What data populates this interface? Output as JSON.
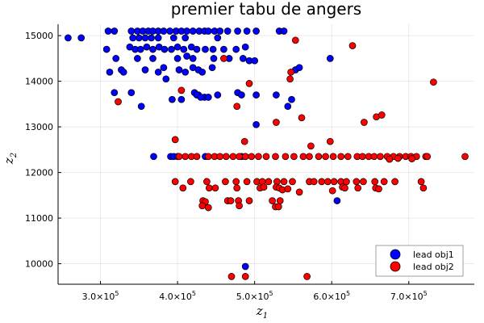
{
  "chart_data": {
    "type": "scatter",
    "title": "premier tabu de angers",
    "xlabel": "z",
    "xlabel_sub": "1",
    "ylabel": "z",
    "ylabel_sub": "2",
    "xlim": [
      245000,
      785000
    ],
    "ylim": [
      9550,
      15250
    ],
    "x_ticks": [
      {
        "value": 300000,
        "mantissa": "3.0×10",
        "exp": "5"
      },
      {
        "value": 400000,
        "mantissa": "4.0×10",
        "exp": "5"
      },
      {
        "value": 500000,
        "mantissa": "5.0×10",
        "exp": "5"
      },
      {
        "value": 600000,
        "mantissa": "6.0×10",
        "exp": "5"
      },
      {
        "value": 700000,
        "mantissa": "7.0×10",
        "exp": "5"
      }
    ],
    "y_ticks": [
      {
        "value": 10000,
        "label": "10000"
      },
      {
        "value": 11000,
        "label": "11000"
      },
      {
        "value": 12000,
        "label": "12000"
      },
      {
        "value": 13000,
        "label": "13000"
      },
      {
        "value": 14000,
        "label": "14000"
      },
      {
        "value": 15000,
        "label": "15000"
      }
    ],
    "grid": true,
    "legend_position": "bottom-right",
    "series": [
      {
        "name": "lead obj1",
        "color": "#0000ff",
        "points": [
          [
            258000,
            14950
          ],
          [
            275000,
            14950
          ],
          [
            310000,
            15100
          ],
          [
            318000,
            15100
          ],
          [
            340000,
            15100
          ],
          [
            348000,
            15100
          ],
          [
            355000,
            15100
          ],
          [
            362000,
            15100
          ],
          [
            368000,
            15100
          ],
          [
            375000,
            15100
          ],
          [
            382000,
            15100
          ],
          [
            390000,
            15100
          ],
          [
            398000,
            15100
          ],
          [
            405000,
            15100
          ],
          [
            412000,
            15100
          ],
          [
            420000,
            15100
          ],
          [
            428000,
            15100
          ],
          [
            435000,
            15100
          ],
          [
            440000,
            15100
          ],
          [
            448000,
            15100
          ],
          [
            455000,
            15100
          ],
          [
            465000,
            15100
          ],
          [
            478000,
            15100
          ],
          [
            490000,
            15100
          ],
          [
            502000,
            15100
          ],
          [
            532000,
            15100
          ],
          [
            538000,
            15100
          ],
          [
            342000,
            14950
          ],
          [
            350000,
            14950
          ],
          [
            358000,
            14950
          ],
          [
            366000,
            14950
          ],
          [
            375000,
            14950
          ],
          [
            395000,
            14950
          ],
          [
            410000,
            14950
          ],
          [
            452000,
            14950
          ],
          [
            308000,
            14700
          ],
          [
            338000,
            14750
          ],
          [
            345000,
            14700
          ],
          [
            352000,
            14700
          ],
          [
            360000,
            14750
          ],
          [
            368000,
            14700
          ],
          [
            376000,
            14750
          ],
          [
            383000,
            14700
          ],
          [
            392000,
            14700
          ],
          [
            400000,
            14750
          ],
          [
            408000,
            14700
          ],
          [
            418000,
            14750
          ],
          [
            425000,
            14700
          ],
          [
            436000,
            14700
          ],
          [
            446000,
            14700
          ],
          [
            460000,
            14700
          ],
          [
            476000,
            14700
          ],
          [
            488000,
            14750
          ],
          [
            320000,
            14500
          ],
          [
            348000,
            14500
          ],
          [
            368000,
            14500
          ],
          [
            400000,
            14500
          ],
          [
            412000,
            14550
          ],
          [
            420000,
            14500
          ],
          [
            447000,
            14500
          ],
          [
            467000,
            14500
          ],
          [
            485000,
            14500
          ],
          [
            493000,
            14450
          ],
          [
            500000,
            14450
          ],
          [
            598000,
            14500
          ],
          [
            312000,
            14200
          ],
          [
            327000,
            14250
          ],
          [
            330000,
            14200
          ],
          [
            358000,
            14250
          ],
          [
            375000,
            14200
          ],
          [
            382000,
            14300
          ],
          [
            402000,
            14250
          ],
          [
            410000,
            14200
          ],
          [
            420000,
            14300
          ],
          [
            427000,
            14250
          ],
          [
            432000,
            14200
          ],
          [
            445000,
            14300
          ],
          [
            553000,
            14250
          ],
          [
            558000,
            14300
          ],
          [
            318000,
            13750
          ],
          [
            340000,
            13750
          ],
          [
            385000,
            14050
          ],
          [
            422000,
            13750
          ],
          [
            427000,
            13700
          ],
          [
            435000,
            13650
          ],
          [
            440000,
            13650
          ],
          [
            452000,
            13700
          ],
          [
            478000,
            13750
          ],
          [
            483000,
            13700
          ],
          [
            502000,
            13700
          ],
          [
            528000,
            13700
          ],
          [
            353000,
            13450
          ],
          [
            393000,
            13600
          ],
          [
            405000,
            13600
          ],
          [
            425000,
            13700
          ],
          [
            430000,
            13650
          ],
          [
            543000,
            13450
          ],
          [
            548000,
            13600
          ],
          [
            502000,
            13050
          ],
          [
            369000,
            12350
          ],
          [
            391000,
            12350
          ],
          [
            395000,
            12350
          ],
          [
            400000,
            12350
          ],
          [
            436000,
            12350
          ],
          [
            483000,
            12350
          ],
          [
            488000,
            12350
          ],
          [
            607000,
            11380
          ],
          [
            488000,
            9940
          ]
        ]
      },
      {
        "name": "lead obj2",
        "color": "#ff0000",
        "points": [
          [
            323000,
            13550
          ],
          [
            405000,
            13800
          ],
          [
            460000,
            14500
          ],
          [
            493000,
            13950
          ],
          [
            553000,
            14900
          ],
          [
            546000,
            14050
          ],
          [
            547000,
            14200
          ],
          [
            627000,
            14780
          ],
          [
            732000,
            13980
          ],
          [
            528000,
            13100
          ],
          [
            561000,
            13200
          ],
          [
            642000,
            13100
          ],
          [
            658000,
            13220
          ],
          [
            665000,
            13260
          ],
          [
            598000,
            12680
          ],
          [
            573000,
            12580
          ],
          [
            487000,
            12680
          ],
          [
            397000,
            12720
          ],
          [
            477000,
            13450
          ],
          [
            402000,
            12350
          ],
          [
            410000,
            12350
          ],
          [
            418000,
            12350
          ],
          [
            425000,
            12350
          ],
          [
            440000,
            12350
          ],
          [
            448000,
            12350
          ],
          [
            455000,
            12350
          ],
          [
            463000,
            12350
          ],
          [
            472000,
            12350
          ],
          [
            480000,
            12350
          ],
          [
            488000,
            12350
          ],
          [
            496000,
            12350
          ],
          [
            505000,
            12350
          ],
          [
            515000,
            12350
          ],
          [
            527000,
            12350
          ],
          [
            540000,
            12350
          ],
          [
            551000,
            12350
          ],
          [
            563000,
            12350
          ],
          [
            571000,
            12350
          ],
          [
            583000,
            12350
          ],
          [
            592000,
            12350
          ],
          [
            602000,
            12350
          ],
          [
            612000,
            12350
          ],
          [
            621000,
            12350
          ],
          [
            633000,
            12350
          ],
          [
            640000,
            12350
          ],
          [
            648000,
            12350
          ],
          [
            655000,
            12350
          ],
          [
            663000,
            12350
          ],
          [
            672000,
            12350
          ],
          [
            680000,
            12350
          ],
          [
            688000,
            12350
          ],
          [
            696000,
            12350
          ],
          [
            703000,
            12350
          ],
          [
            710000,
            12350
          ],
          [
            722000,
            12350
          ],
          [
            724000,
            12350
          ],
          [
            773000,
            12350
          ],
          [
            686000,
            12310
          ],
          [
            675000,
            12290
          ],
          [
            704000,
            12300
          ],
          [
            397000,
            11800
          ],
          [
            417000,
            11800
          ],
          [
            438000,
            11800
          ],
          [
            462000,
            11800
          ],
          [
            476000,
            11800
          ],
          [
            490000,
            11800
          ],
          [
            503000,
            11800
          ],
          [
            510000,
            11800
          ],
          [
            518000,
            11800
          ],
          [
            529000,
            11800
          ],
          [
            538000,
            11800
          ],
          [
            549000,
            11800
          ],
          [
            571000,
            11800
          ],
          [
            577000,
            11800
          ],
          [
            587000,
            11800
          ],
          [
            595000,
            11800
          ],
          [
            603000,
            11800
          ],
          [
            612000,
            11800
          ],
          [
            619000,
            11800
          ],
          [
            632000,
            11800
          ],
          [
            641000,
            11800
          ],
          [
            656000,
            11800
          ],
          [
            668000,
            11800
          ],
          [
            682000,
            11800
          ],
          [
            716000,
            11800
          ],
          [
            407000,
            11660
          ],
          [
            441000,
            11660
          ],
          [
            449000,
            11660
          ],
          [
            477000,
            11660
          ],
          [
            507000,
            11660
          ],
          [
            512000,
            11680
          ],
          [
            528000,
            11680
          ],
          [
            532000,
            11660
          ],
          [
            536000,
            11620
          ],
          [
            543000,
            11640
          ],
          [
            558000,
            11570
          ],
          [
            601000,
            11600
          ],
          [
            614000,
            11680
          ],
          [
            617000,
            11660
          ],
          [
            634000,
            11660
          ],
          [
            657000,
            11660
          ],
          [
            661000,
            11640
          ],
          [
            719000,
            11660
          ],
          [
            433000,
            11380
          ],
          [
            436000,
            11360
          ],
          [
            465000,
            11380
          ],
          [
            469000,
            11380
          ],
          [
            479000,
            11380
          ],
          [
            493000,
            11380
          ],
          [
            523000,
            11380
          ],
          [
            533000,
            11380
          ],
          [
            432000,
            11270
          ],
          [
            440000,
            11230
          ],
          [
            480000,
            11270
          ],
          [
            527000,
            11250
          ],
          [
            531000,
            11250
          ],
          [
            470000,
            9720
          ],
          [
            488000,
            9720
          ],
          [
            568000,
            9720
          ]
        ]
      }
    ]
  }
}
